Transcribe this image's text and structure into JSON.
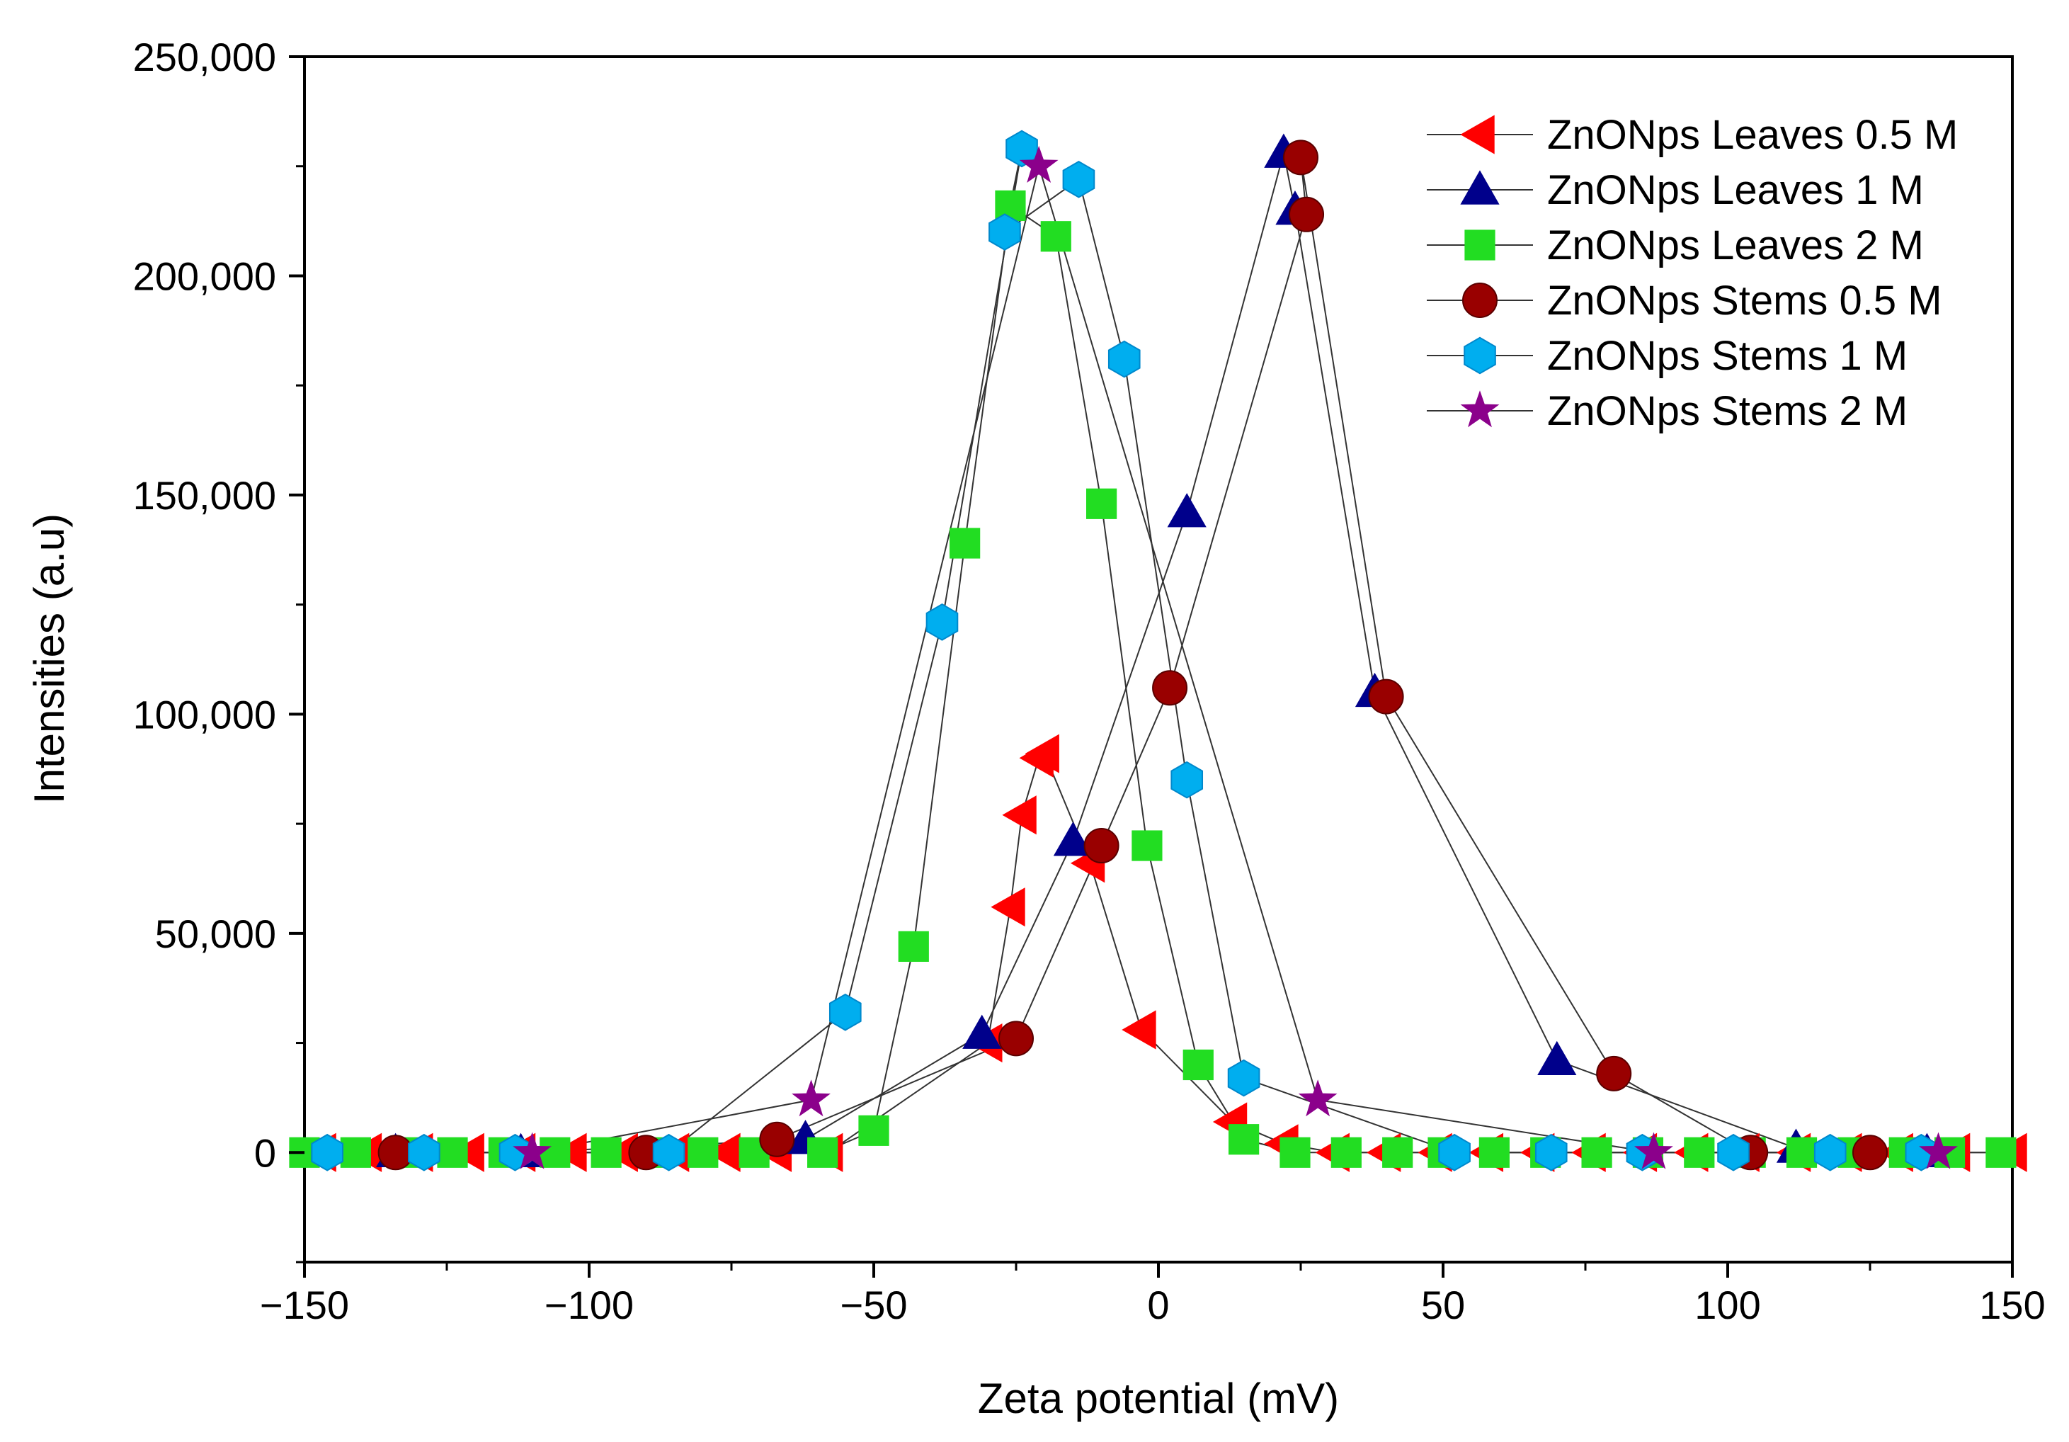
{
  "chart_data": {
    "type": "scatter",
    "title": "",
    "xlabel": "Zeta potential (mV)",
    "ylabel": "Intensities (a.u)",
    "xlim": [
      -150,
      150
    ],
    "ylim": [
      -25000,
      250000
    ],
    "x_ticks": [
      -150,
      -100,
      -50,
      0,
      50,
      100,
      150
    ],
    "x_tick_labels": [
      "−150",
      "−100",
      "−50",
      "0",
      "50",
      "100",
      "150"
    ],
    "y_ticks": [
      0,
      50000,
      100000,
      150000,
      200000,
      250000
    ],
    "y_tick_labels": [
      "0",
      "50,000",
      "100,000",
      "150,000",
      "200,000",
      "250,000"
    ],
    "legend_position": "top-right",
    "series": [
      {
        "name": "ZnONps Leaves 0.5 M",
        "marker": "triangle-left",
        "color": "#ff0000",
        "x": [
          -147,
          -139,
          -130,
          -121,
          -112,
          -103,
          -94,
          -85,
          -76,
          -67,
          -58,
          -30,
          -26,
          -24,
          -21,
          -20,
          -12,
          -3,
          13,
          22,
          31,
          40,
          49,
          58,
          67,
          76,
          85,
          94,
          103,
          112,
          121,
          130,
          140,
          150
        ],
        "y": [
          0,
          0,
          0,
          0,
          0,
          0,
          0,
          0,
          0,
          0,
          0,
          25000,
          56000,
          77000,
          90000,
          91000,
          66000,
          28000,
          7000,
          2000,
          0,
          0,
          0,
          0,
          0,
          0,
          0,
          0,
          0,
          0,
          0,
          0,
          0,
          0
        ]
      },
      {
        "name": "ZnONps Leaves 1 M",
        "marker": "triangle-up",
        "color": "#00008b",
        "x": [
          -134,
          -112,
          -62,
          -31,
          -15,
          5,
          22,
          24,
          38,
          70,
          112,
          135
        ],
        "y": [
          0,
          0,
          3000,
          27000,
          71000,
          146000,
          228000,
          215000,
          105000,
          21000,
          1000,
          0
        ],
        "order": [
          0,
          1,
          2,
          3,
          4,
          5,
          6,
          7,
          8,
          9,
          10,
          11
        ]
      },
      {
        "name": "ZnONps Leaves 2 M",
        "marker": "square",
        "color": "#22dd22",
        "x": [
          -150,
          -141,
          -132,
          -124,
          -115,
          -106,
          -97,
          -88,
          -80,
          -71,
          -59,
          -50,
          -43,
          -34,
          -26,
          -18,
          -10,
          -2,
          7,
          15,
          24,
          33,
          42,
          50,
          59,
          68,
          77,
          86,
          95,
          104,
          113,
          122,
          131,
          139,
          148
        ],
        "y": [
          0,
          0,
          0,
          0,
          0,
          0,
          0,
          0,
          0,
          0,
          0,
          5000,
          47000,
          139000,
          216000,
          209000,
          148000,
          70000,
          20000,
          3000,
          0,
          0,
          0,
          0,
          0,
          0,
          0,
          0,
          0,
          0,
          0,
          0,
          0,
          0,
          0
        ],
        "order": [
          0,
          1,
          2,
          3,
          4,
          5,
          6,
          7,
          8,
          9,
          10,
          11,
          12,
          13,
          14,
          15,
          16,
          17,
          18,
          19,
          20,
          21,
          22,
          23,
          24,
          25,
          26,
          27,
          28,
          29,
          30,
          31,
          32,
          33,
          34
        ]
      },
      {
        "name": "ZnONps Stems 0.5 M",
        "marker": "circle",
        "color": "#990000",
        "x": [
          -134,
          -90,
          -67,
          -25,
          -10,
          2,
          25,
          26,
          40,
          80,
          104,
          125
        ],
        "y": [
          0,
          0,
          3000,
          26000,
          70000,
          106000,
          227000,
          214000,
          104000,
          18000,
          0,
          0
        ],
        "order": [
          0,
          1,
          2,
          3,
          4,
          5,
          7,
          6,
          8,
          9,
          10,
          11
        ]
      },
      {
        "name": "ZnONps Stems 1 M",
        "marker": "hexagon",
        "color": "#00aeef",
        "x": [
          -146,
          -129,
          -113,
          -86,
          -55,
          -38,
          -27,
          -24,
          -14,
          -6,
          5,
          15,
          52,
          69,
          85,
          101,
          118,
          134
        ],
        "y": [
          0,
          0,
          0,
          0,
          32000,
          121000,
          210000,
          229000,
          222000,
          181000,
          85000,
          17000,
          0,
          0,
          0,
          0,
          0,
          0
        ],
        "order": [
          0,
          1,
          2,
          3,
          4,
          5,
          7,
          6,
          8,
          9,
          10,
          11,
          12,
          13,
          14,
          15,
          16,
          17
        ]
      },
      {
        "name": "ZnONps Stems 2 M",
        "marker": "star",
        "color": "#8b008b",
        "x": [
          -110,
          -61,
          -21,
          28,
          87,
          137
        ],
        "y": [
          0,
          12000,
          225000,
          12000,
          0,
          0
        ],
        "order": [
          0,
          1,
          2,
          3,
          4,
          5
        ]
      }
    ]
  }
}
